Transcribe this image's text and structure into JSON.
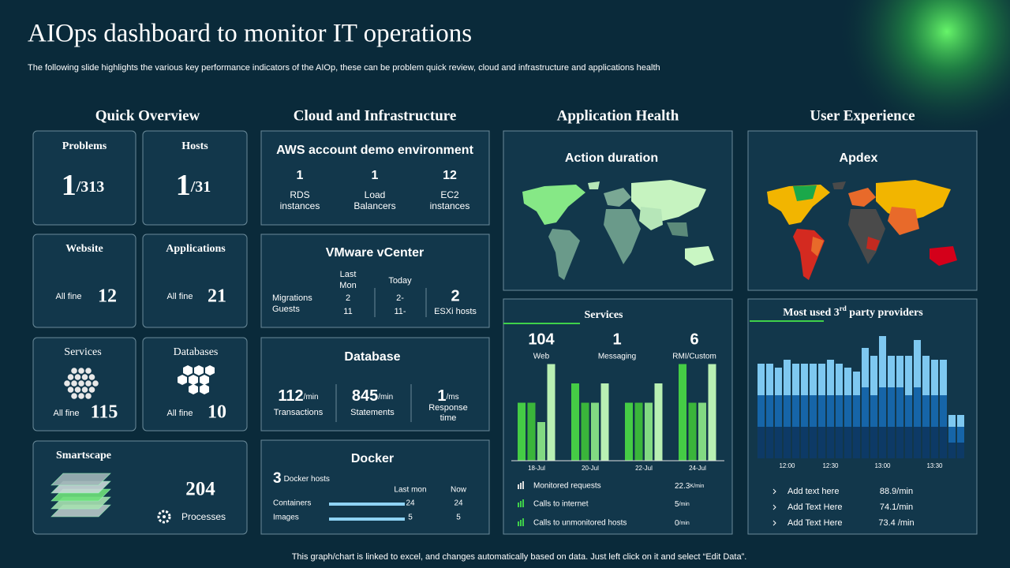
{
  "header": {
    "title": "AIOps dashboard to monitor IT operations",
    "subtitle": "The following slide highlights the various key performance indicators of the AIOp,  these can be problem quick review, cloud and infrastructure and applications health"
  },
  "sections": [
    "Quick Overview",
    "Cloud and Infrastructure",
    "Application Health",
    "User Experience"
  ],
  "quick_overview": {
    "problems": {
      "label": "Problems",
      "value": "1",
      "total": "/313"
    },
    "hosts": {
      "label": "Hosts",
      "value": "1",
      "total": "/31"
    },
    "website": {
      "label": "Website",
      "status": "All fine",
      "value": "12"
    },
    "applications": {
      "label": "Applications",
      "status": "All fine",
      "value": "21"
    },
    "services": {
      "label": "Services",
      "status": "All fine",
      "value": "115"
    },
    "databases": {
      "label": "Databases",
      "status": "All fine",
      "value": "10"
    },
    "smartscape": {
      "label": "Smartscape",
      "value": "204",
      "unit": "Processes"
    }
  },
  "aws": {
    "title": "AWS account demo environment",
    "items": [
      {
        "value": "1",
        "label": [
          "RDS",
          "instances"
        ]
      },
      {
        "value": "1",
        "label": [
          "Load",
          "Balancers"
        ]
      },
      {
        "value": "12",
        "label": [
          "EC2",
          "instances"
        ]
      }
    ]
  },
  "vmware": {
    "title": "VMware vCenter",
    "row_labels": [
      "Migrations",
      "Guests"
    ],
    "col_last": [
      "Last",
      "Mon"
    ],
    "col_today": "Today",
    "last": [
      "2",
      "11"
    ],
    "today": [
      "2-",
      "11-"
    ],
    "esxi_value": "2",
    "esxi_label": "ESXi  hosts"
  },
  "database": {
    "title": "Database",
    "metrics": [
      {
        "value": "112",
        "unit": "/min",
        "label": [
          "Transactions"
        ]
      },
      {
        "value": "845",
        "unit": "/min",
        "label": [
          "Statements"
        ]
      },
      {
        "value": "1",
        "unit": "/ms",
        "label": [
          "Response",
          "time"
        ]
      }
    ]
  },
  "docker": {
    "title": "Docker",
    "hosts_value": "3",
    "hosts_label": "Docker hosts",
    "columns": [
      "Last mon",
      "Now"
    ],
    "rows": [
      {
        "label": "Containers",
        "last": "24",
        "now": "24"
      },
      {
        "label": "Images",
        "last": "5",
        "now": "5"
      }
    ]
  },
  "application_health": {
    "map_title": "Action duration"
  },
  "user_experience": {
    "map_title": "Apdex"
  },
  "services_panel": {
    "title": "Services",
    "stats": [
      {
        "value": "104",
        "label": "Web"
      },
      {
        "value": "1",
        "label": "Messaging"
      },
      {
        "value": "6",
        "label": "RMI/Custom"
      }
    ],
    "chart": {
      "type": "bar",
      "categories": [
        "18-Jul",
        "20-Jul",
        "22-Jul",
        "24-Jul"
      ],
      "ylim": [
        0,
        6
      ],
      "series": [
        {
          "color": "#45cc45",
          "values": [
            3,
            4,
            3,
            5
          ]
        },
        {
          "color": "#3ab53a",
          "values": [
            3,
            3,
            3,
            3
          ]
        },
        {
          "color": "#82d982",
          "values": [
            2,
            3,
            3,
            3
          ]
        },
        {
          "color": "#b9f0b3",
          "values": [
            5,
            4,
            4,
            5
          ]
        }
      ]
    },
    "metrics": [
      {
        "label": "Monitored requests",
        "value": "22.3",
        "unit": "K/min"
      },
      {
        "label": "Calls to internet",
        "value": "5",
        "unit": "/min"
      },
      {
        "label": "Calls to unmonitored hosts",
        "value": "0",
        "unit": "/min"
      }
    ]
  },
  "providers": {
    "title_pre": "Most used 3",
    "title_sup": "rd",
    "title_post": " party providers",
    "chart": {
      "type": "bar",
      "stacked": true,
      "ylim": [
        0,
        16
      ],
      "categories": [
        null,
        null,
        null,
        "12:00",
        null,
        null,
        null,
        null,
        "12:30",
        null,
        null,
        null,
        null,
        null,
        "13:00",
        null,
        null,
        null,
        null,
        null,
        "13:30",
        null,
        null,
        null
      ],
      "series": [
        {
          "color": "#0d3a66",
          "values": [
            4,
            4,
            4,
            4,
            4,
            4,
            4,
            4,
            4,
            4,
            4,
            4,
            4,
            4,
            4,
            4,
            4,
            4,
            4,
            4,
            4,
            4,
            2,
            2
          ]
        },
        {
          "color": "#1665a8",
          "values": [
            4,
            4,
            4,
            4,
            4,
            4,
            4,
            4,
            4,
            4,
            4,
            4,
            5,
            4,
            5,
            5,
            5,
            4,
            5,
            4,
            4,
            4,
            2,
            2
          ]
        },
        {
          "color": "#7ec8f0",
          "values": [
            4,
            4,
            3.5,
            4.5,
            4,
            4,
            4,
            4,
            4.5,
            4,
            3.5,
            3,
            5,
            5,
            6.5,
            4,
            4,
            5,
            6,
            5,
            4.5,
            4.5,
            1.5,
            1.5
          ]
        }
      ]
    },
    "list": [
      {
        "name": "Add text here",
        "value": "88.9/min"
      },
      {
        "name": "Add Text Here",
        "value": "74.1/min"
      },
      {
        "name": "Add Text Here",
        "value": "73.4 /min"
      }
    ]
  },
  "footer": "This graph/chart is linked to excel,  and changes automatically based on data. Just left click on it and select “Edit Data”."
}
